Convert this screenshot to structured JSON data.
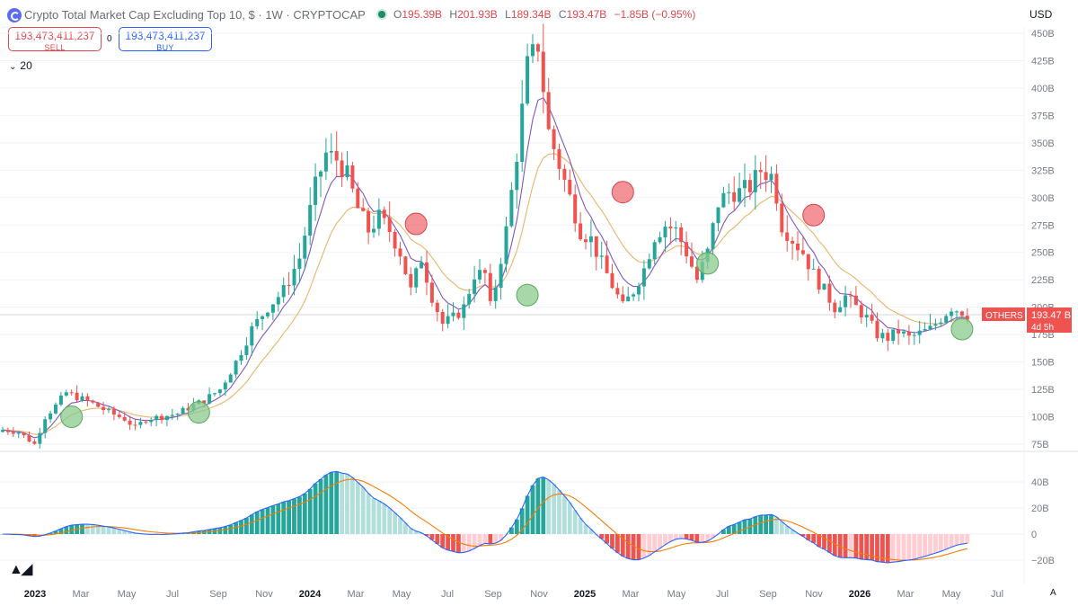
{
  "header": {
    "title": "Crypto Total Market Cap Excluding Top 10, $ · 1W · CRYPTOCAP",
    "ohlc": [
      {
        "key": "O",
        "value": "195.39B"
      },
      {
        "key": "H",
        "value": "201.93B"
      },
      {
        "key": "L",
        "value": "189.34B"
      },
      {
        "key": "C",
        "value": "193.47B"
      }
    ],
    "change": "−1.85B (−0.95%)",
    "currency": "USD"
  },
  "trade": {
    "sell_price": "193,473,411,237",
    "sell_label": "SELL",
    "spread": "0",
    "buy_price": "193,473,411,237",
    "buy_label": "BUY"
  },
  "indicator": {
    "label": "20"
  },
  "price_tag": {
    "symbol": "OTHERS",
    "price": "193.47 B",
    "countdown": "4d 5h"
  },
  "colors": {
    "up": "#26a69a",
    "down": "#ef5350",
    "fast_ma": "#7e57c2",
    "slow_ma": "#e8b46a",
    "macd": "#2962ff",
    "signal": "#f57c00",
    "buy_marker": "#8bc98d",
    "sell_marker": "#ef6e74"
  },
  "chart_data": [
    {
      "type": "candlestick",
      "y_ticks": [
        "75B",
        "100B",
        "125B",
        "150B",
        "175B",
        "200B",
        "225B",
        "250B",
        "275B",
        "300B",
        "325B",
        "350B",
        "375B",
        "400B",
        "425B",
        "450B"
      ],
      "ylim": [
        75,
        450
      ],
      "time_ticks": [
        {
          "label": "2023",
          "bold": true
        },
        {
          "label": "Mar"
        },
        {
          "label": "May"
        },
        {
          "label": "Jul"
        },
        {
          "label": "Sep"
        },
        {
          "label": "Nov"
        },
        {
          "label": "2024",
          "bold": true
        },
        {
          "label": "Mar"
        },
        {
          "label": "May"
        },
        {
          "label": "Jul"
        },
        {
          "label": "Sep"
        },
        {
          "label": "Nov"
        },
        {
          "label": "2025",
          "bold": true
        },
        {
          "label": "Mar"
        },
        {
          "label": "May"
        },
        {
          "label": "Jul"
        },
        {
          "label": "Sep"
        },
        {
          "label": "Nov"
        },
        {
          "label": "2026",
          "bold": true
        },
        {
          "label": "Mar"
        },
        {
          "label": "May"
        },
        {
          "label": "Jul"
        }
      ],
      "price_keyframes": [
        [
          0,
          88
        ],
        [
          3,
          86
        ],
        [
          6,
          75
        ],
        [
          8,
          100
        ],
        [
          10,
          110
        ],
        [
          12,
          122
        ],
        [
          14,
          118
        ],
        [
          17,
          112
        ],
        [
          20,
          104
        ],
        [
          23,
          98
        ],
        [
          25,
          90
        ],
        [
          27,
          98
        ],
        [
          30,
          100
        ],
        [
          33,
          103
        ],
        [
          35,
          108
        ],
        [
          38,
          115
        ],
        [
          41,
          125
        ],
        [
          44,
          150
        ],
        [
          47,
          180
        ],
        [
          50,
          200
        ],
        [
          53,
          215
        ],
        [
          56,
          245
        ],
        [
          59,
          310
        ],
        [
          61,
          340
        ],
        [
          63,
          335
        ],
        [
          65,
          320
        ],
        [
          67,
          290
        ],
        [
          69,
          270
        ],
        [
          71,
          282
        ],
        [
          73,
          270
        ],
        [
          75,
          250
        ],
        [
          77,
          215
        ],
        [
          79,
          245
        ],
        [
          81,
          210
        ],
        [
          83,
          185
        ],
        [
          85,
          190
        ],
        [
          87,
          200
        ],
        [
          89,
          230
        ],
        [
          91,
          230
        ],
        [
          92,
          200
        ],
        [
          93,
          220
        ],
        [
          95,
          270
        ],
        [
          97,
          340
        ],
        [
          99,
          420
        ],
        [
          101,
          440
        ],
        [
          103,
          360
        ],
        [
          105,
          330
        ],
        [
          107,
          300
        ],
        [
          109,
          270
        ],
        [
          111,
          262
        ],
        [
          113,
          240
        ],
        [
          115,
          220
        ],
        [
          117,
          200
        ],
        [
          119,
          215
        ],
        [
          121,
          235
        ],
        [
          123,
          265
        ],
        [
          125,
          275
        ],
        [
          127,
          270
        ],
        [
          129,
          250
        ],
        [
          131,
          225
        ],
        [
          133,
          250
        ],
        [
          135,
          295
        ],
        [
          137,
          305
        ],
        [
          139,
          305
        ],
        [
          141,
          310
        ],
        [
          143,
          325
        ],
        [
          145,
          320
        ],
        [
          146,
          302
        ],
        [
          147,
          275
        ],
        [
          149,
          262
        ],
        [
          151,
          250
        ],
        [
          153,
          230
        ],
        [
          155,
          215
        ],
        [
          157,
          200
        ],
        [
          159,
          210
        ],
        [
          161,
          200
        ],
        [
          163,
          190
        ],
        [
          165,
          175
        ],
        [
          167,
          172
        ],
        [
          169,
          178
        ],
        [
          171,
          172
        ],
        [
          173,
          176
        ],
        [
          175,
          180
        ],
        [
          177,
          190
        ],
        [
          179,
          200
        ],
        [
          181,
          196
        ],
        [
          182,
          193.47
        ]
      ],
      "signals": [
        {
          "type": "buy",
          "x": 13,
          "y": 100
        },
        {
          "type": "buy",
          "x": 37,
          "y": 104
        },
        {
          "type": "sell",
          "x": 78,
          "y": 276
        },
        {
          "type": "buy",
          "x": 99,
          "y": 211
        },
        {
          "type": "sell",
          "x": 117,
          "y": 305
        },
        {
          "type": "buy",
          "x": 133,
          "y": 240
        },
        {
          "type": "sell",
          "x": 153,
          "y": 284
        },
        {
          "type": "buy",
          "x": 181,
          "y": 180
        }
      ]
    },
    {
      "type": "macd",
      "y_ticks": [
        "40B",
        "20B",
        "0",
        "−20B"
      ],
      "ylim": [
        -30,
        50
      ]
    }
  ]
}
